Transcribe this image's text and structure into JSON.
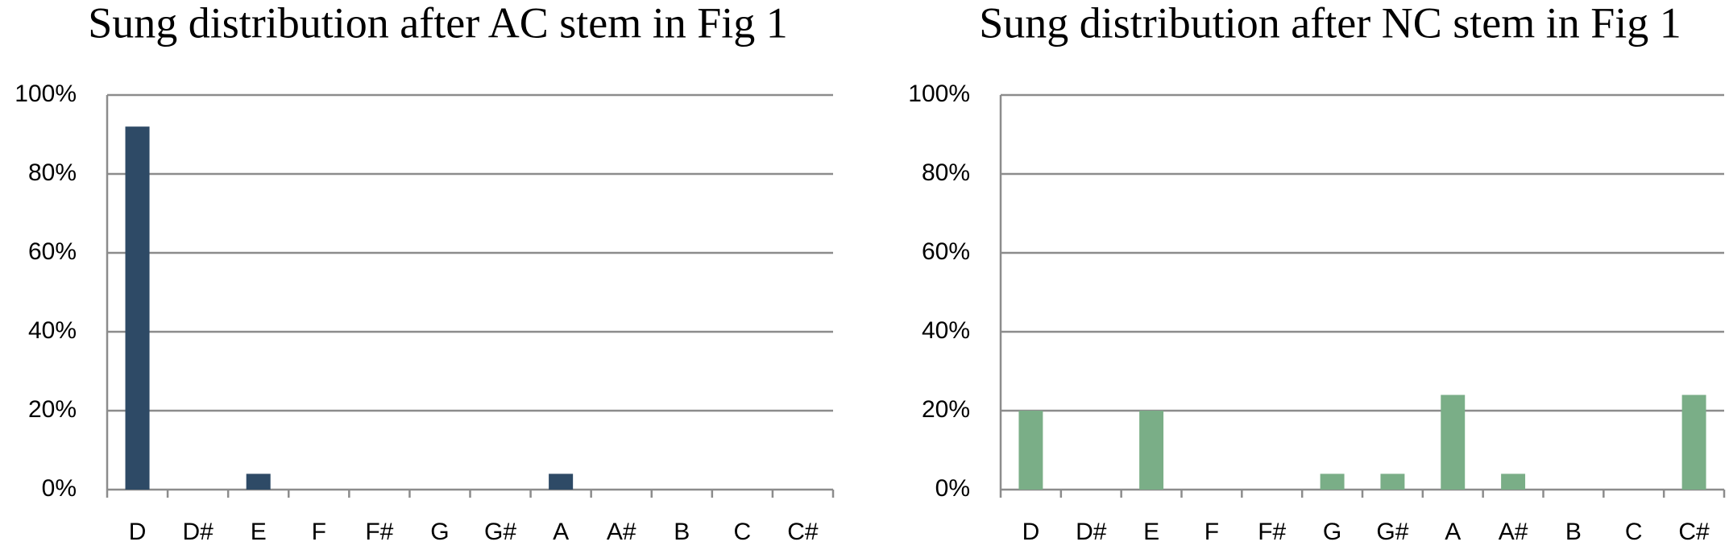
{
  "chart_data": [
    {
      "type": "bar",
      "title": "Sung distribution after AC stem in Fig 1",
      "categories": [
        "D",
        "D#",
        "E",
        "F",
        "F#",
        "G",
        "G#",
        "A",
        "A#",
        "B",
        "C",
        "C#"
      ],
      "values": [
        92,
        0,
        4,
        0,
        0,
        0,
        0,
        4,
        0,
        0,
        0,
        0
      ],
      "color": "#2e4a66",
      "ylim": [
        0,
        100
      ],
      "yticks": [
        {
          "value": 0,
          "label": "0%"
        },
        {
          "value": 20,
          "label": "20%"
        },
        {
          "value": 40,
          "label": "40%"
        },
        {
          "value": 60,
          "label": "60%"
        },
        {
          "value": 80,
          "label": "80%"
        },
        {
          "value": 100,
          "label": "100%"
        }
      ],
      "grid": true
    },
    {
      "type": "bar",
      "title": "Sung distribution after NC stem in Fig 1",
      "categories": [
        "D",
        "D#",
        "E",
        "F",
        "F#",
        "G",
        "G#",
        "A",
        "A#",
        "B",
        "C",
        "C#"
      ],
      "values": [
        20,
        0,
        20,
        0,
        0,
        4,
        4,
        24,
        4,
        0,
        0,
        24
      ],
      "color": "#7aae87",
      "ylim": [
        0,
        100
      ],
      "yticks": [
        {
          "value": 0,
          "label": "0%"
        },
        {
          "value": 20,
          "label": "20%"
        },
        {
          "value": 40,
          "label": "40%"
        },
        {
          "value": 60,
          "label": "60%"
        },
        {
          "value": 80,
          "label": "80%"
        },
        {
          "value": 100,
          "label": "100%"
        }
      ],
      "grid": true
    }
  ]
}
